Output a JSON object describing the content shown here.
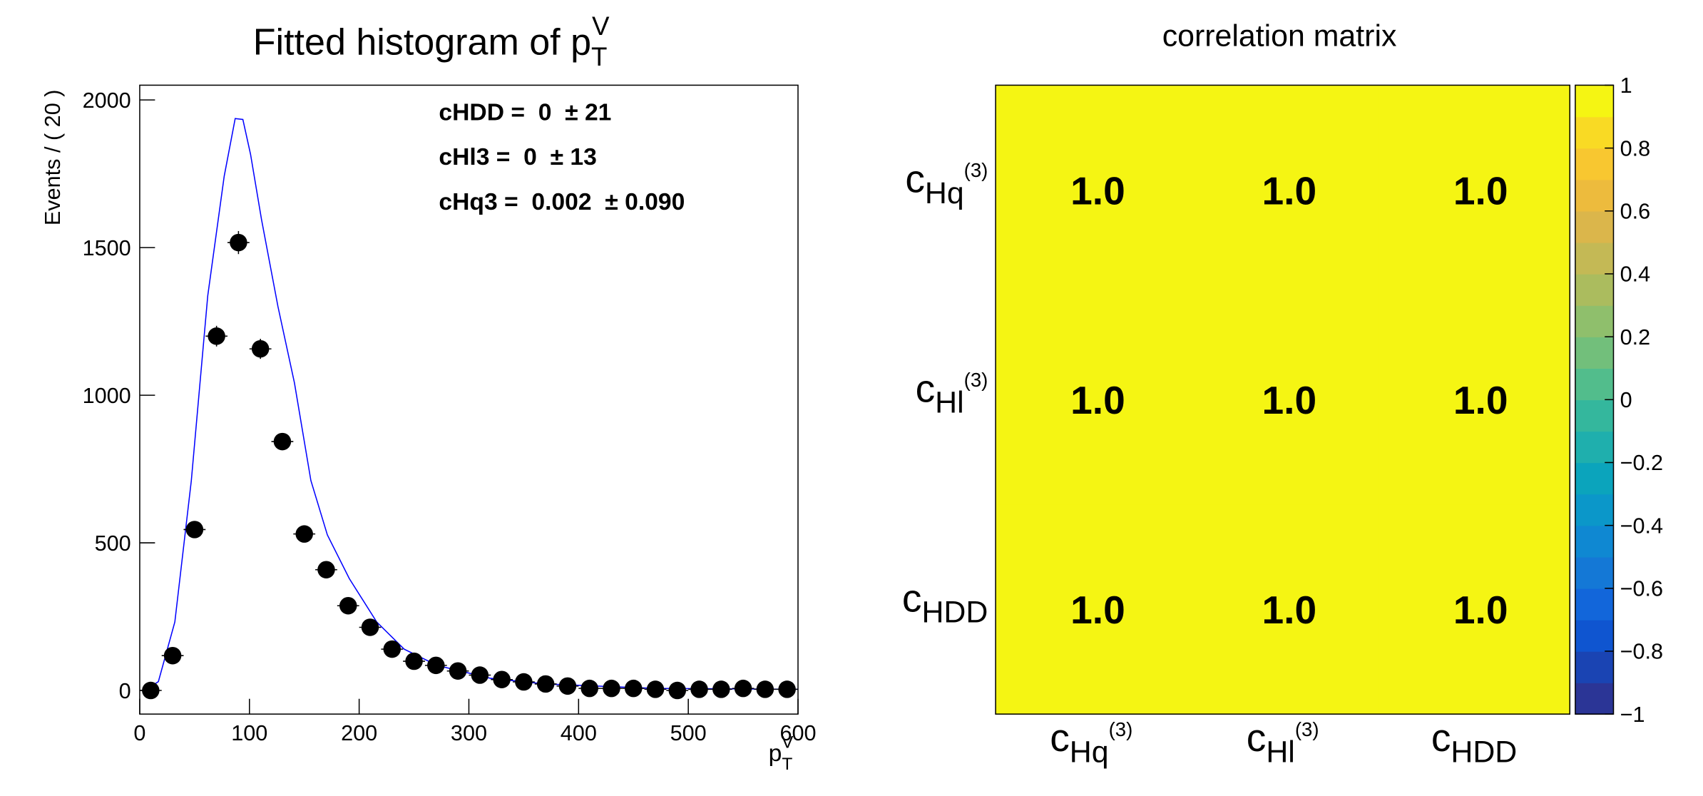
{
  "chart_data": [
    {
      "type": "scatter",
      "title": {
        "text": "Fitted histogram of p",
        "sub": "T",
        "sup": "V"
      },
      "x_label": {
        "text": "p",
        "sub": "T",
        "sup": "V"
      },
      "y_label": "Events / ( 20 )",
      "x": [
        10,
        30,
        50,
        70,
        90,
        110,
        130,
        150,
        170,
        190,
        210,
        230,
        250,
        270,
        290,
        310,
        330,
        350,
        370,
        390,
        410,
        430,
        450,
        470,
        490,
        510,
        530,
        550,
        570,
        590
      ],
      "values": [
        0,
        118,
        545,
        1200,
        1517,
        1157,
        843,
        530,
        409,
        287,
        214,
        140,
        99,
        85,
        66,
        52,
        37,
        29,
        22,
        15,
        7,
        7,
        7,
        4,
        0,
        4,
        4,
        7,
        4,
        4
      ],
      "errors": [
        2,
        11,
        23,
        35,
        39,
        34,
        29,
        23,
        20,
        17,
        15,
        12,
        10,
        9,
        8,
        7,
        6,
        5,
        5,
        4,
        3,
        3,
        3,
        2,
        2,
        2,
        2,
        3,
        2,
        2
      ],
      "xerr": 10,
      "color": "#000000",
      "curve": {
        "color": "#0000ff",
        "x": [
          5,
          17,
          32,
          47,
          62,
          77,
          87,
          94,
          101,
          111,
          126,
          141,
          156,
          171,
          191,
          216,
          241,
          271,
          320,
          370,
          470,
          600
        ],
        "y": [
          0,
          30,
          232,
          710,
          1337,
          1742,
          1937,
          1934,
          1816,
          1595,
          1300,
          1042,
          711,
          527,
          379,
          232,
          140,
          85,
          41,
          22,
          7,
          4
        ]
      },
      "annotations": [
        "cHDD =  0  ± 21",
        "cHl3 =  0  ± 13",
        "cHq3 =  0.002  ± 0.090"
      ],
      "xlim": [
        0,
        600
      ],
      "xticks": [
        0,
        100,
        200,
        300,
        400,
        500,
        600
      ],
      "ylim": [
        -80,
        2050
      ],
      "yticks": [
        0,
        500,
        1000,
        1500,
        2000
      ]
    },
    {
      "type": "heatmap",
      "title": "correlation matrix",
      "row_labels": [
        {
          "base": "c",
          "sub": "Hq",
          "sup": "(3)"
        },
        {
          "base": "c",
          "sub": "Hl",
          "sup": "(3)"
        },
        {
          "base": "c",
          "sub": "HDD"
        }
      ],
      "col_labels": [
        {
          "base": "c",
          "sub": "Hq",
          "sup": "(3)"
        },
        {
          "base": "c",
          "sub": "Hl",
          "sup": "(3)"
        },
        {
          "base": "c",
          "sub": "HDD"
        }
      ],
      "values": [
        [
          1,
          1,
          1
        ],
        [
          1,
          1,
          1
        ],
        [
          1,
          1,
          1
        ]
      ],
      "value_labels": [
        [
          "1.0",
          "1.0",
          "1.0"
        ],
        [
          "1.0",
          "1.0",
          "1.0"
        ],
        [
          "1.0",
          "1.0",
          "1.0"
        ]
      ],
      "colorbar": {
        "lim": [
          -1,
          1
        ],
        "ticks": [
          {
            "value": -1,
            "label": "−1"
          },
          {
            "value": -0.8,
            "label": "−0.8"
          },
          {
            "value": -0.6,
            "label": "−0.6"
          },
          {
            "value": -0.4,
            "label": "−0.4"
          },
          {
            "value": -0.2,
            "label": "−0.2"
          },
          0,
          0.2,
          0.4,
          0.6,
          0.8,
          1
        ],
        "colors": [
          "#2b3596",
          "#1a44b3",
          "#0f55d0",
          "#1266da",
          "#1478d6",
          "#0f88d2",
          "#0b97c9",
          "#0ba4bc",
          "#1fafad",
          "#34b79d",
          "#52bd8c",
          "#72bf7b",
          "#8fbf6c",
          "#abbc5e",
          "#c4b955",
          "#dbb64b",
          "#edbb3d",
          "#f8c730",
          "#f9da24",
          "#f5f513"
        ]
      }
    }
  ]
}
